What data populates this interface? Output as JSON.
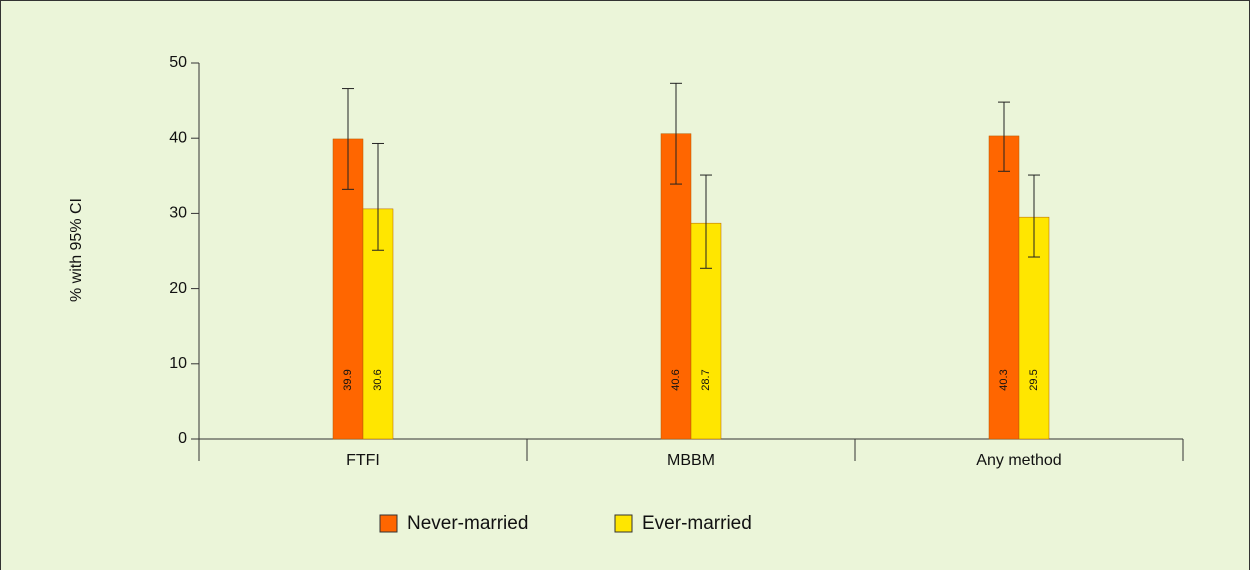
{
  "chart_data": {
    "type": "bar",
    "y_label": "% with 95% CI",
    "categories": [
      "FTFI",
      "MBBM",
      "Any method"
    ],
    "series": [
      {
        "name": "Never-married",
        "color": "#ff6600",
        "values": [
          39.9,
          40.6,
          40.3
        ],
        "ci_low": [
          33.2,
          33.9,
          35.6
        ],
        "ci_high": [
          46.6,
          47.3,
          44.8
        ]
      },
      {
        "name": "Ever-married",
        "color": "#ffe600",
        "values": [
          30.6,
          28.7,
          29.5
        ],
        "ci_low": [
          25.1,
          22.7,
          24.2
        ],
        "ci_high": [
          39.3,
          35.1,
          35.1
        ]
      }
    ],
    "ylim": [
      0,
      50
    ],
    "yticks": [
      0,
      10,
      20,
      30,
      40,
      50
    ],
    "grid": false,
    "legend": "bottom"
  }
}
